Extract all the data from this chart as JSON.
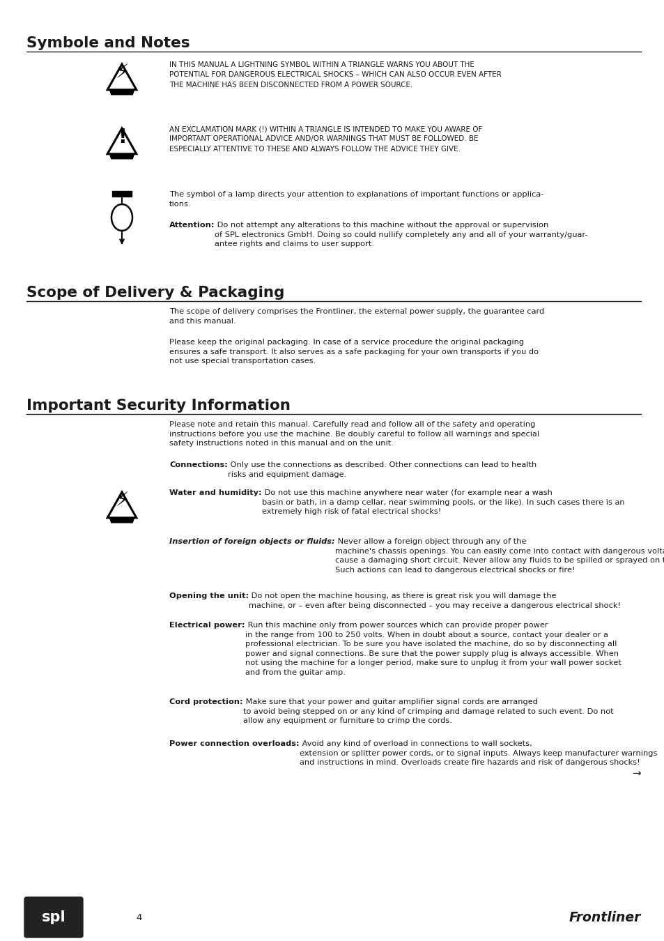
{
  "bg_color": "#ffffff",
  "text_color": "#1a1a1a",
  "section1_title": "Symbole and Notes",
  "section2_title": "Scope of Delivery & Packaging",
  "section3_title": "Important Security Information",
  "footer_page": "4",
  "footer_brand": "Frontliner",
  "text1": "IN THIS MANUAL A LIGHTNING SYMBOL WITHIN A TRIANGLE WARNS YOU ABOUT THE\nPOTENTIAL FOR DANGEROUS ELECTRICAL SHOCKS – WHICH CAN ALSO OCCUR EVEN AFTER\nTHE MACHINE HAS BEEN DISCONNECTED FROM A POWER SOURCE.",
  "text2": "AN EXCLAMATION MARK (!) WITHIN A TRIANGLE IS INTENDED TO MAKE YOU AWARE OF\nIMPORTANT OPERATIONAL ADVICE AND/OR WARNINGS THAT MUST BE FOLLOWED. BE\nESPECIALLY ATTENTIVE TO THESE AND ALWAYS FOLLOW THE ADVICE THEY GIVE.",
  "text3a": "The symbol of a lamp directs your attention to explanations of important functions or applica-\ntions.",
  "text3b": "Attention: Do not attempt any alterations to this machine without the approval or supervision\nof SPL electronics GmbH. Doing so could nullify completely any and all of your warranty/guar-\nantee rights and claims to user support.",
  "text_scope1": "The scope of delivery comprises the Frontliner, the external power supply, the guarantee card\nand this manual.",
  "text_scope2": "Please keep the original packaging. In case of a service procedure the original packaging\nensures a safe transport. It also serves as a safe packaging for your own transports if you do\nnot use special transportation cases.",
  "text_sec1": "Please note and retain this manual. Carefully read and follow all of the safety and operating\ninstructions before you use the machine. Be doubly careful to follow all warnings and special\nsafety instructions noted in this manual and on the unit.",
  "text_sec2": "Connections: Only use the connections as described. Other connections can lead to health\nrisks and equipment damage.",
  "text_sec3": "Water and humidity: Do not use this machine anywhere near water (for example near a wash\nbasin or bath, in a damp cellar, near swimming pools, or the like). In such cases there is an\nextremely high risk of fatal electrical shocks!",
  "text_sec4": "Insertion of foreign objects or fluids: Never allow a foreign object through any of the\nmachine's chassis openings. You can easily come into contact with dangerous voltage or\ncause a damaging short circuit. Never allow any fluids to be spilled or sprayed on the machine.\nSuch actions can lead to dangerous electrical shocks or fire!",
  "text_sec5": "Opening the unit: Do not open the machine housing, as there is great risk you will damage the\nmachine, or – even after being disconnected – you may receive a dangerous electrical shock!",
  "text_sec6": "Electrical power: Run this machine only from power sources which can provide proper power\nin the range from 100 to 250 volts. When in doubt about a source, contact your dealer or a\nprofessional electrician. To be sure you have isolated the machine, do so by disconnecting all\npower and signal connections. Be sure that the power supply plug is always accessible. When\nnot using the machine for a longer period, make sure to unplug it from your wall power socket\nand from the guitar amp.",
  "text_sec7": "Cord protection: Make sure that your power and guitar amplifier signal cords are arranged\nto avoid being stepped on or any kind of crimping and damage related to such event. Do not\nallow any equipment or furniture to crimp the cords.",
  "text_sec8": "Power connection overloads: Avoid any kind of overload in connections to wall sockets,\nextension or splitter power cords, or to signal inputs. Always keep manufacturer warnings\nand instructions in mind. Overloads create fire hazards and risk of dangerous shocks!",
  "arrow": "→",
  "bold_keywords": {
    "text3b": "Attention:",
    "text_sec2": "Connections:",
    "text_sec3": "Water and humidity:",
    "text_sec4": "Insertion of foreign objects or fluids:",
    "text_sec5": "Opening the unit:",
    "text_sec6": "Electrical power:",
    "text_sec7": "Cord protection:",
    "text_sec8": "Power connection overloads:"
  }
}
